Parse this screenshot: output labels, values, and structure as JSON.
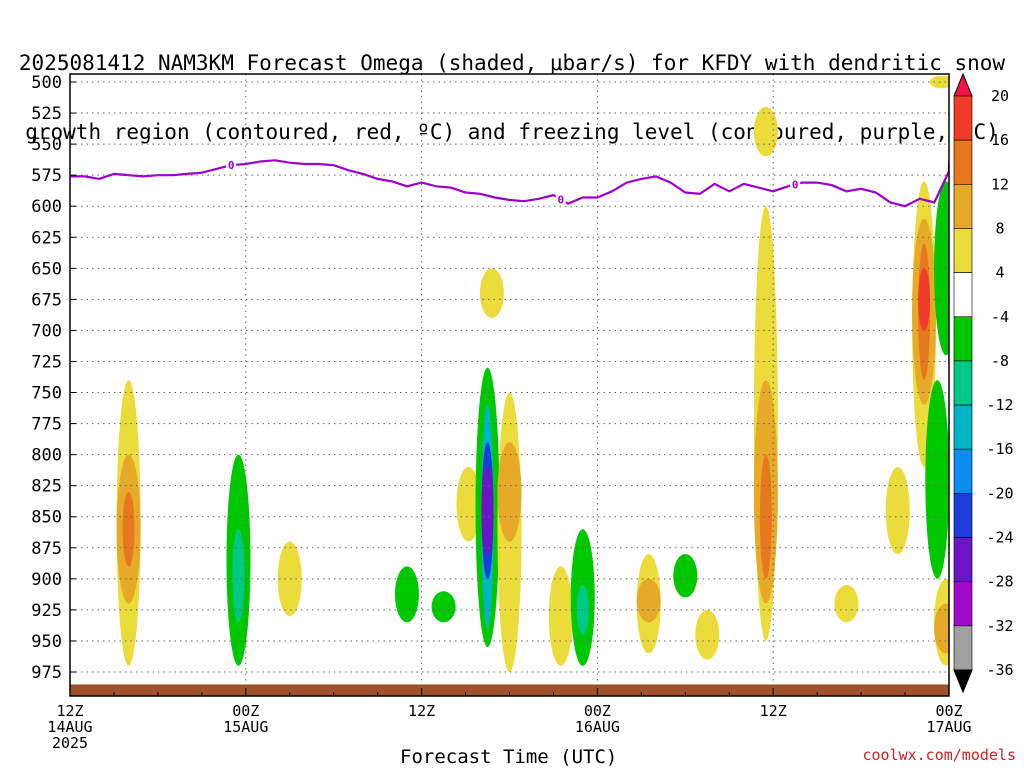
{
  "title": {
    "line1": "2025081412 NAM3KM Forecast Omega (shaded, μbar/s) for KFDY with dendritic snow",
    "line2": "growth region (contoured, red, ºC) and freezing level (contoured, purple, ºC)"
  },
  "x_title": "Forecast Time (UTC)",
  "credit": "coolwx.com/models",
  "colors": {
    "freezing_level": "#9900cc",
    "ground": "#a0522d",
    "grid": "#666666"
  },
  "chart_data": {
    "type": "heatmap",
    "x_range_hours": [
      0,
      60
    ],
    "y_range_mb": [
      500,
      985
    ],
    "y_ticks": [
      500,
      525,
      550,
      575,
      600,
      625,
      650,
      675,
      700,
      725,
      750,
      775,
      800,
      825,
      850,
      875,
      900,
      925,
      950,
      975
    ],
    "x_ticks": [
      {
        "hour": 0,
        "l1": "12Z",
        "l2": "14AUG",
        "l3": "2025"
      },
      {
        "hour": 12,
        "l1": "00Z",
        "l2": "15AUG",
        "l3": ""
      },
      {
        "hour": 24,
        "l1": "12Z",
        "l2": "",
        "l3": ""
      },
      {
        "hour": 36,
        "l1": "00Z",
        "l2": "16AUG",
        "l3": ""
      },
      {
        "hour": 48,
        "l1": "12Z",
        "l2": "",
        "l3": ""
      },
      {
        "hour": 60,
        "l1": "00Z",
        "l2": "17AUG",
        "l3": ""
      }
    ],
    "colorbar": {
      "levels": [
        "20",
        "16",
        "12",
        "8",
        "4",
        "-4",
        "-8",
        "-12",
        "-16",
        "-20",
        "-24",
        "-28",
        "-32",
        "-36"
      ],
      "colors": [
        "#f0144b",
        "#f03c28",
        "#e8781e",
        "#e6aa28",
        "#ebdc3c",
        "#ffffff",
        "#00c800",
        "#00c887",
        "#00b4c8",
        "#0a8cf0",
        "#1e3cdc",
        "#6e14c8",
        "#a00ac8",
        "#a0a0a0",
        "#000000"
      ]
    },
    "freezing_level": {
      "label": "0",
      "label_hours": [
        11,
        33.5,
        49.5
      ],
      "hours": [
        0,
        1,
        2,
        3,
        4,
        5,
        6,
        7,
        8,
        9,
        10,
        11,
        12,
        13,
        14,
        15,
        16,
        17,
        18,
        19,
        20,
        21,
        22,
        23,
        24,
        25,
        26,
        27,
        28,
        29,
        30,
        31,
        32,
        33,
        34,
        35,
        36,
        37,
        38,
        39,
        40,
        41,
        42,
        43,
        44,
        45,
        46,
        47,
        48,
        49,
        50,
        51,
        52,
        53,
        54,
        55,
        56,
        57,
        58,
        59,
        60
      ],
      "pressure": [
        576,
        576,
        578,
        574,
        575,
        576,
        575,
        575,
        574,
        573,
        570,
        567,
        566,
        564,
        563,
        565,
        566,
        566,
        567,
        571,
        574,
        578,
        580,
        584,
        581,
        584,
        585,
        589,
        590,
        593,
        595,
        596,
        594,
        591,
        598,
        593,
        593,
        588,
        581,
        578,
        576,
        581,
        589,
        590,
        582,
        588,
        582,
        585,
        588,
        584,
        581,
        581,
        583,
        588,
        586,
        589,
        597,
        600,
        594,
        597,
        572
      ],
      "extra": [
        [
          60,
          565
        ]
      ]
    },
    "ground_pressure": 985,
    "omega_blobs": [
      {
        "hour": 4,
        "pmin": 740,
        "pmax": 970,
        "value": 4
      },
      {
        "hour": 4,
        "pmin": 800,
        "pmax": 920,
        "value": 8
      },
      {
        "hour": 4,
        "pmin": 830,
        "pmax": 890,
        "value": 12
      },
      {
        "hour": 11.5,
        "pmin": 800,
        "pmax": 970,
        "value": -8
      },
      {
        "hour": 11.5,
        "pmin": 860,
        "pmax": 935,
        "value": -12
      },
      {
        "hour": 15,
        "pmin": 870,
        "pmax": 930,
        "value": 4
      },
      {
        "hour": 23,
        "pmin": 890,
        "pmax": 935,
        "value": -8
      },
      {
        "hour": 25.5,
        "pmin": 910,
        "pmax": 935,
        "value": -8
      },
      {
        "hour": 27.2,
        "pmin": 810,
        "pmax": 870,
        "value": 4
      },
      {
        "hour": 28.5,
        "pmin": 730,
        "pmax": 955,
        "value": -8
      },
      {
        "hour": 28.5,
        "pmin": 760,
        "pmax": 940,
        "value": -16
      },
      {
        "hour": 28.5,
        "pmin": 790,
        "pmax": 900,
        "value": -24
      },
      {
        "hour": 28.5,
        "pmin": 810,
        "pmax": 880,
        "value": -28
      },
      {
        "hour": 30,
        "pmin": 750,
        "pmax": 975,
        "value": 4
      },
      {
        "hour": 30,
        "pmin": 790,
        "pmax": 870,
        "value": 8
      },
      {
        "hour": 28.8,
        "pmin": 650,
        "pmax": 690,
        "value": 4
      },
      {
        "hour": 33.5,
        "pmin": 890,
        "pmax": 970,
        "value": 4
      },
      {
        "hour": 35,
        "pmin": 860,
        "pmax": 970,
        "value": -8
      },
      {
        "hour": 35,
        "pmin": 905,
        "pmax": 945,
        "value": -12
      },
      {
        "hour": 39.5,
        "pmin": 880,
        "pmax": 960,
        "value": 4
      },
      {
        "hour": 39.5,
        "pmin": 900,
        "pmax": 935,
        "value": 8
      },
      {
        "hour": 42,
        "pmin": 880,
        "pmax": 915,
        "value": -8
      },
      {
        "hour": 43.5,
        "pmin": 925,
        "pmax": 965,
        "value": 4
      },
      {
        "hour": 47.5,
        "pmin": 520,
        "pmax": 560,
        "value": 4
      },
      {
        "hour": 47.5,
        "pmin": 600,
        "pmax": 950,
        "value": 4
      },
      {
        "hour": 47.5,
        "pmin": 740,
        "pmax": 920,
        "value": 8
      },
      {
        "hour": 47.5,
        "pmin": 800,
        "pmax": 900,
        "value": 12
      },
      {
        "hour": 53,
        "pmin": 905,
        "pmax": 935,
        "value": 4
      },
      {
        "hour": 58.3,
        "pmin": 580,
        "pmax": 810,
        "value": 4
      },
      {
        "hour": 58.3,
        "pmin": 610,
        "pmax": 760,
        "value": 8
      },
      {
        "hour": 58.3,
        "pmin": 630,
        "pmax": 740,
        "value": 12
      },
      {
        "hour": 58.3,
        "pmin": 650,
        "pmax": 700,
        "value": 16
      },
      {
        "hour": 56.5,
        "pmin": 810,
        "pmax": 880,
        "value": 4
      },
      {
        "hour": 59.2,
        "pmin": 740,
        "pmax": 900,
        "value": -8
      },
      {
        "hour": 59.8,
        "pmin": 580,
        "pmax": 720,
        "value": -8
      },
      {
        "hour": 59.8,
        "pmin": 900,
        "pmax": 970,
        "value": 4
      },
      {
        "hour": 59.8,
        "pmin": 920,
        "pmax": 960,
        "value": 8
      },
      {
        "hour": 59.5,
        "pmin": 495,
        "pmax": 505,
        "value": 4
      }
    ]
  }
}
